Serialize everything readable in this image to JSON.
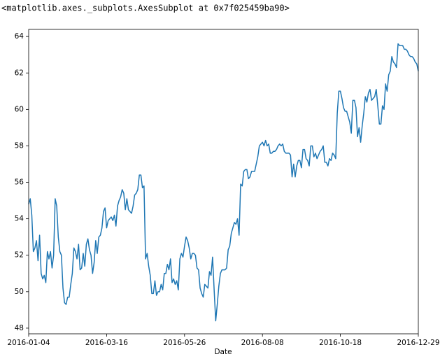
{
  "output": "<matplotlib.axes._subplots.AxesSubplot at 0x7f025459ba90>",
  "chart_data": {
    "type": "line",
    "xlabel": "Date",
    "color": "#1f77b4",
    "xlim": [
      0,
      250
    ],
    "xticks": [
      {
        "value": 0,
        "label": "2016-01-04"
      },
      {
        "value": 50,
        "label": "2016-03-16"
      },
      {
        "value": 100,
        "label": "2016-05-26"
      },
      {
        "value": 150,
        "label": "2016-08-08"
      },
      {
        "value": 200,
        "label": "2016-10-18"
      },
      {
        "value": 250,
        "label": "2016-12-29"
      }
    ],
    "ylim": [
      47.69,
      64.39
    ],
    "yticks": [
      48,
      50,
      52,
      54,
      56,
      58,
      60,
      62,
      64
    ],
    "values": [
      54.8,
      55.1,
      54.2,
      52.2,
      52.4,
      52.8,
      51.7,
      53.1,
      51,
      50.7,
      50.9,
      50.5,
      52.2,
      51.8,
      52.2,
      51.3,
      52,
      55.1,
      54.7,
      53,
      52.2,
      52,
      50.2,
      49.4,
      49.3,
      49.7,
      49.7,
      50.4,
      51,
      52.4,
      52.2,
      51.8,
      52.6,
      51.2,
      51.3,
      52.1,
      51.4,
      52.6,
      52.9,
      52.3,
      52,
      51,
      51.6,
      52.8,
      52.1,
      53,
      53.1,
      53.5,
      54.4,
      54.6,
      53.5,
      53.9,
      54,
      54.1,
      53.9,
      54.2,
      53.6,
      54.7,
      55,
      55.2,
      55.6,
      55.4,
      54.5,
      55.1,
      54.5,
      54.4,
      54.3,
      54.7,
      55.3,
      55.4,
      55.6,
      56.4,
      56.4,
      55.7,
      55.8,
      51.8,
      52.1,
      51.4,
      50.9,
      49.9,
      49.9,
      50.6,
      49.8,
      50,
      50,
      50.4,
      50.1,
      51,
      51,
      51.5,
      51.2,
      51.8,
      50.5,
      50.7,
      50.4,
      50.6,
      50.1,
      51.8,
      52.1,
      51.9,
      52.5,
      53,
      52.8,
      52.4,
      51.8,
      52.1,
      52.1,
      52,
      51.3,
      51.2,
      50.2,
      49.9,
      49.7,
      50.4,
      50.3,
      50.2,
      51.1,
      50.9,
      51.9,
      50.1,
      48.4,
      49.3,
      50.3,
      51,
      51.2,
      51.2,
      51.2,
      51.3,
      52.3,
      52.5,
      53.2,
      53.5,
      53.8,
      53.7,
      54,
      53.1,
      55.9,
      55.8,
      56.6,
      56.7,
      56.7,
      56.2,
      56.3,
      56.6,
      56.6,
      56.6,
      57,
      57.4,
      58,
      58.1,
      58.2,
      58,
      58.3,
      58,
      58.1,
      57.6,
      57.6,
      57.7,
      57.7,
      57.8,
      58,
      58.1,
      58,
      58.1,
      57.7,
      57.6,
      57.6,
      57.6,
      57.5,
      56.3,
      57,
      56.3,
      56.9,
      57.2,
      57.2,
      56.8,
      57.8,
      57.8,
      57.3,
      57.2,
      56.9,
      58,
      58,
      57.4,
      57.6,
      57.3,
      57.5,
      57.7,
      57.8,
      58,
      57.1,
      57.1,
      56.9,
      57.3,
      57.2,
      57.6,
      57.5,
      57.3,
      59.8,
      61,
      61,
      60.6,
      60.1,
      59.9,
      59.9,
      59.6,
      59.3,
      58.7,
      60.5,
      60.5,
      60.1,
      58.5,
      59,
      58.2,
      59.1,
      59.8,
      60.7,
      60.4,
      60.9,
      61.1,
      60.5,
      60.6,
      60.7,
      61.1,
      60.2,
      59.2,
      59.2,
      60.2,
      60,
      61.4,
      61,
      61.9,
      62.1,
      62.9,
      62.6,
      62.5,
      62.3,
      63.6,
      63.5,
      63.5,
      63.5,
      63.3,
      63.3,
      63.2,
      63,
      62.9,
      62.9,
      62.8,
      62.6,
      62.5,
      62.1
    ]
  }
}
